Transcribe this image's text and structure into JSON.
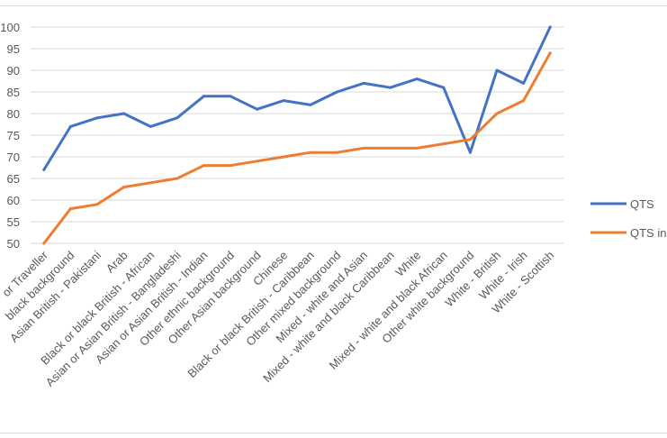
{
  "chart_data": {
    "type": "line",
    "categories": [
      "Gypsy or Traveller",
      "Black or black British - Any other black background",
      "Asian or Asian British - Pakistani",
      "Arab",
      "Black or black British - African",
      "Asian or Asian British - Bangladeshi",
      "Asian or Asian British - Indian",
      "Other ethnic background",
      "Other Asian background",
      "Chinese",
      "Black or black British - Caribbean",
      "Other mixed background",
      "Mixed - white and Asian",
      "Mixed - white and black Caribbean",
      "White",
      "Mixed - white and black African",
      "Other white background",
      "White - British",
      "White - Irish",
      "White - Scottish"
    ],
    "category_labels_visible": [
      "or Traveller",
      "black background",
      "Asian British - Pakistani",
      "Arab",
      "Black or black British - African",
      "Asian or Asian British - Bangladeshi",
      "Asian or Asian British - Indian",
      "Other ethnic background",
      "Other Asian background",
      "Chinese",
      "Black or black British - Caribbean",
      "Other mixed background",
      "Mixed - white and Asian",
      "Mixed - white and black Caribbean",
      "White",
      "Mixed - white and black African",
      "Other white background",
      "White - British",
      "White - Irish",
      "White - Scottish"
    ],
    "series": [
      {
        "name": "QTS",
        "color": "#4472c4",
        "values": [
          67,
          77,
          79,
          80,
          77,
          79,
          84,
          84,
          81,
          83,
          82,
          85,
          87,
          86,
          88,
          86,
          71,
          90,
          87,
          100
        ]
      },
      {
        "name": "QTS in",
        "color": "#ed7d31",
        "values": [
          50,
          58,
          59,
          63,
          64,
          65,
          68,
          68,
          69,
          70,
          71,
          71,
          72,
          72,
          72,
          73,
          74,
          80,
          83,
          94
        ]
      }
    ],
    "y_ticks": [
      "50",
      "55",
      "60",
      "65",
      "70",
      "75",
      "80",
      "85",
      "90",
      "95",
      "100"
    ],
    "ylim": [
      50,
      100
    ],
    "grid": true,
    "legend_position": "right"
  }
}
